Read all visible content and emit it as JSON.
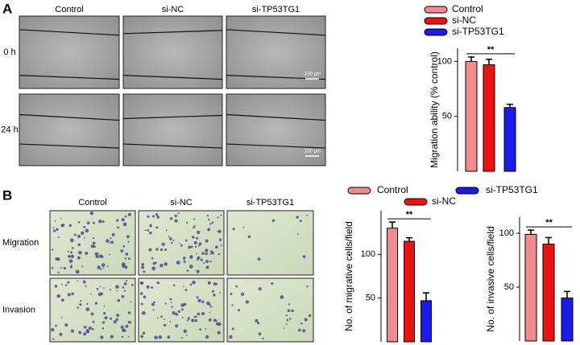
{
  "figure": {
    "panels": [
      "A",
      "B"
    ],
    "a_columns": [
      "Control",
      "si-NC",
      "si-TP53TG1"
    ],
    "a_rows": [
      "0 h",
      "24 h"
    ],
    "scale_bar": "100 μm",
    "b_columns": [
      "Control",
      "si-NC",
      "si-TP53TG1"
    ],
    "b_rows": [
      "Migration",
      "Invasion"
    ]
  },
  "chart_data": [
    {
      "type": "bar",
      "y_label": "Migration ability (% control)",
      "categories": [
        "Control",
        "si-NC",
        "si-TP53TG1"
      ],
      "values": [
        100,
        97,
        58
      ],
      "errors": [
        4,
        5,
        3
      ],
      "colors": [
        "#f28b8b",
        "#ee1111",
        "#1a1aee"
      ],
      "ylim": [
        0,
        112
      ],
      "yticks": [
        50,
        100
      ],
      "significance": "**",
      "legend": "top-right"
    },
    {
      "type": "bar",
      "y_label": "No. of migrative cells/field",
      "categories": [
        "Control",
        "si-NC",
        "si-TP53TG1"
      ],
      "values": [
        130,
        115,
        47
      ],
      "errors": [
        7,
        4,
        9
      ],
      "colors": [
        "#f28b8b",
        "#ee1111",
        "#1a1aee"
      ],
      "ylim": [
        0,
        150
      ],
      "yticks": [
        50,
        100
      ],
      "significance": "**",
      "legend": "top"
    },
    {
      "type": "bar",
      "y_label": "No. of invasive cells/field",
      "categories": [
        "Control",
        "si-NC",
        "si-TP53TG1"
      ],
      "values": [
        99,
        90,
        40
      ],
      "errors": [
        4,
        6,
        6
      ],
      "colors": [
        "#f28b8b",
        "#ee1111",
        "#1a1aee"
      ],
      "ylim": [
        0,
        115
      ],
      "yticks": [
        50,
        100
      ],
      "significance": "**"
    }
  ]
}
